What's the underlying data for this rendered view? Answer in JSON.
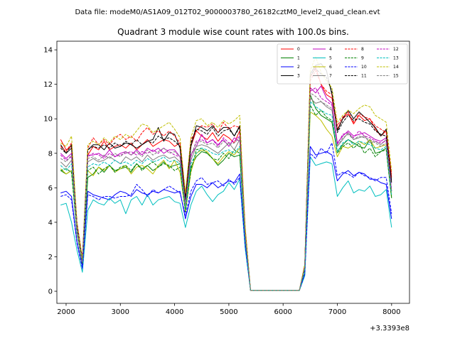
{
  "chart_data": {
    "type": "line",
    "suptitle": "Data file: modeM0/AS1A09_012T02_9000003780_26182cztM0_level2_quad_clean.evt",
    "title": "Quadrant 3 module wise count rates with 100.0s bins.",
    "xlabel": "",
    "ylabel": "",
    "x_offset_label": "+3.3393e8",
    "xlim": [
      1830,
      8330
    ],
    "ylim": [
      -0.7,
      14.5
    ],
    "xticks": [
      2000,
      3000,
      4000,
      5000,
      6000,
      7000,
      8000
    ],
    "yticks": [
      0,
      2,
      4,
      6,
      8,
      10,
      12,
      14
    ],
    "legend_position": "top-right",
    "x": [
      1900,
      2000,
      2100,
      2200,
      2300,
      2400,
      2500,
      2600,
      2700,
      2800,
      2900,
      3000,
      3100,
      3200,
      3300,
      3400,
      3500,
      3600,
      3700,
      3800,
      3900,
      4000,
      4100,
      4200,
      4300,
      4400,
      4500,
      4600,
      4700,
      4800,
      4900,
      5000,
      5100,
      5200,
      5300,
      5400,
      5500,
      5600,
      5700,
      5800,
      5900,
      6000,
      6100,
      6200,
      6300,
      6400,
      6500,
      6600,
      6700,
      6800,
      6900,
      7000,
      7100,
      7200,
      7300,
      7400,
      7500,
      7600,
      7700,
      7800,
      7900,
      8000
    ],
    "series": [
      {
        "name": "0",
        "color": "#ff0000",
        "dash": "solid",
        "values": [
          8.8,
          8.2,
          8.4,
          4.0,
          1.9,
          7.9,
          8.4,
          8.2,
          8.7,
          8.2,
          8.4,
          8.5,
          8.3,
          8.6,
          8.2,
          8.5,
          8.8,
          8.4,
          8.6,
          8.8,
          8.7,
          8.4,
          8.6,
          5.6,
          8.4,
          9.3,
          9.0,
          8.8,
          9.2,
          8.7,
          9.1,
          8.9,
          8.6,
          9.3,
          3.6,
          0.05,
          0.05,
          0.05,
          0.05,
          0.05,
          0.05,
          0.05,
          0.05,
          0.05,
          0.05,
          1.5,
          12.4,
          13.0,
          12.0,
          11.4,
          11.2,
          9.4,
          10.0,
          10.3,
          9.7,
          10.2,
          9.9,
          10.0,
          9.4,
          9.0,
          9.3,
          6.6
        ]
      },
      {
        "name": "1",
        "color": "#008000",
        "dash": "solid",
        "values": [
          7.0,
          6.8,
          7.0,
          3.5,
          1.6,
          6.6,
          6.8,
          7.2,
          6.9,
          7.3,
          7.0,
          7.1,
          7.2,
          6.9,
          7.4,
          7.1,
          7.3,
          7.0,
          7.2,
          7.5,
          7.2,
          7.3,
          7.4,
          4.8,
          7.2,
          7.8,
          8.1,
          8.0,
          7.7,
          7.3,
          7.6,
          8.0,
          7.8,
          7.9,
          3.1,
          0.05,
          0.05,
          0.05,
          0.05,
          0.05,
          0.05,
          0.05,
          0.05,
          0.05,
          0.05,
          1.3,
          11.4,
          10.6,
          10.2,
          10.0,
          9.8,
          8.1,
          8.5,
          8.8,
          8.6,
          8.4,
          8.3,
          8.8,
          8.0,
          8.1,
          8.3,
          5.4
        ]
      },
      {
        "name": "2",
        "color": "#0000ff",
        "dash": "solid",
        "values": [
          5.7,
          5.8,
          5.5,
          2.9,
          1.4,
          5.8,
          5.6,
          5.5,
          5.4,
          5.3,
          5.6,
          5.8,
          5.7,
          5.5,
          5.9,
          5.7,
          5.6,
          5.8,
          5.7,
          5.9,
          5.8,
          5.7,
          5.8,
          4.2,
          5.5,
          6.2,
          6.2,
          6.0,
          6.3,
          6.0,
          6.2,
          6.4,
          6.3,
          6.8,
          2.7,
          0.05,
          0.05,
          0.05,
          0.05,
          0.05,
          0.05,
          0.05,
          0.05,
          0.05,
          0.05,
          1.0,
          8.4,
          7.9,
          8.0,
          8.1,
          7.9,
          6.4,
          6.8,
          7.0,
          6.7,
          6.9,
          6.8,
          6.5,
          6.5,
          6.3,
          6.2,
          4.2
        ]
      },
      {
        "name": "3",
        "color": "#000000",
        "dash": "solid",
        "values": [
          8.5,
          8.0,
          8.3,
          3.9,
          1.8,
          8.2,
          8.5,
          8.5,
          8.2,
          8.6,
          8.3,
          8.4,
          8.6,
          8.5,
          8.3,
          8.5,
          8.7,
          8.8,
          9.5,
          8.7,
          9.2,
          9.1,
          8.3,
          5.3,
          8.4,
          9.6,
          9.5,
          9.3,
          9.6,
          9.2,
          9.5,
          9.5,
          9.0,
          9.6,
          3.6,
          0.05,
          0.05,
          0.05,
          0.05,
          0.05,
          0.05,
          0.05,
          0.05,
          0.05,
          0.05,
          1.5,
          12.6,
          13.1,
          13.2,
          12.8,
          11.4,
          9.3,
          10.0,
          10.5,
          10.0,
          10.4,
          10.1,
          9.8,
          9.5,
          9.0,
          9.4,
          6.3
        ]
      },
      {
        "name": "4",
        "color": "#bf00bf",
        "dash": "solid",
        "values": [
          8.0,
          7.7,
          8.0,
          3.7,
          1.8,
          7.9,
          7.9,
          8.0,
          7.8,
          8.2,
          7.8,
          8.0,
          8.1,
          7.9,
          8.2,
          7.9,
          8.3,
          8.1,
          8.3,
          8.0,
          8.2,
          8.2,
          7.8,
          5.0,
          7.9,
          8.4,
          9.1,
          8.6,
          8.8,
          8.5,
          8.8,
          8.4,
          8.9,
          8.7,
          3.3,
          0.05,
          0.05,
          0.05,
          0.05,
          0.05,
          0.05,
          0.05,
          0.05,
          0.05,
          0.05,
          1.4,
          11.8,
          11.5,
          11.9,
          11.2,
          10.9,
          8.6,
          9.0,
          9.3,
          9.0,
          9.1,
          9.2,
          9.0,
          8.8,
          8.7,
          8.9,
          5.8
        ]
      },
      {
        "name": "5",
        "color": "#00bfbf",
        "dash": "solid",
        "values": [
          5.0,
          5.1,
          4.0,
          2.4,
          1.1,
          4.7,
          5.3,
          5.1,
          5.0,
          5.4,
          5.1,
          5.3,
          4.5,
          5.3,
          5.5,
          5.0,
          5.6,
          5.0,
          5.3,
          5.4,
          5.5,
          5.2,
          5.1,
          3.7,
          5.0,
          5.8,
          6.1,
          5.6,
          5.2,
          5.6,
          5.8,
          6.3,
          5.9,
          6.5,
          2.5,
          0.05,
          0.05,
          0.05,
          0.05,
          0.05,
          0.05,
          0.05,
          0.05,
          0.05,
          0.05,
          0.9,
          7.8,
          7.3,
          7.4,
          7.5,
          7.4,
          5.5,
          6.0,
          6.4,
          5.7,
          5.9,
          5.8,
          6.1,
          5.5,
          5.6,
          5.9,
          3.7
        ]
      },
      {
        "name": "6",
        "color": "#bfbf00",
        "dash": "solid",
        "values": [
          7.1,
          6.8,
          7.0,
          3.4,
          1.6,
          7.0,
          6.7,
          7.2,
          7.0,
          7.3,
          6.9,
          7.1,
          7.3,
          6.8,
          7.2,
          7.3,
          7.1,
          6.8,
          7.3,
          7.6,
          7.1,
          7.6,
          6.9,
          4.6,
          6.9,
          8.0,
          8.2,
          8.1,
          7.7,
          7.4,
          7.8,
          8.1,
          7.9,
          8.3,
          3.2,
          0.05,
          0.05,
          0.05,
          0.05,
          0.05,
          0.05,
          0.05,
          0.05,
          0.05,
          0.05,
          1.3,
          10.4,
          10.2,
          9.9,
          9.4,
          9.0,
          7.8,
          8.4,
          8.3,
          8.5,
          8.7,
          8.5,
          8.8,
          8.3,
          8.4,
          8.5,
          5.5
        ]
      },
      {
        "name": "7",
        "color": "#808080",
        "dash": "solid",
        "values": [
          7.5,
          7.2,
          7.6,
          3.6,
          1.7,
          7.5,
          7.7,
          7.5,
          7.6,
          7.8,
          7.6,
          7.4,
          7.8,
          7.6,
          7.8,
          7.5,
          7.9,
          7.6,
          7.8,
          7.9,
          7.7,
          7.8,
          7.5,
          4.9,
          7.6,
          8.4,
          8.5,
          8.4,
          8.2,
          8.0,
          8.3,
          8.6,
          8.2,
          8.8,
          3.2,
          0.05,
          0.05,
          0.05,
          0.05,
          0.05,
          0.05,
          0.05,
          0.05,
          0.05,
          0.05,
          1.3,
          11.2,
          10.9,
          11.0,
          10.7,
          10.5,
          8.4,
          8.8,
          9.2,
          8.8,
          8.9,
          9.0,
          8.6,
          8.7,
          8.5,
          8.8,
          5.8
        ]
      },
      {
        "name": "8",
        "color": "#ff0000",
        "dash": "dashed",
        "values": [
          8.4,
          8.1,
          8.6,
          4.0,
          1.9,
          8.3,
          8.9,
          8.5,
          8.8,
          8.5,
          8.9,
          9.1,
          8.8,
          9.0,
          8.7,
          9.2,
          9.5,
          9.1,
          9.3,
          9.0,
          9.3,
          9.0,
          8.6,
          5.6,
          8.8,
          9.3,
          9.6,
          9.5,
          9.7,
          9.2,
          9.8,
          9.4,
          9.6,
          9.5,
          3.7,
          0.05,
          0.05,
          0.05,
          0.05,
          0.05,
          0.05,
          0.05,
          0.05,
          0.05,
          0.05,
          1.5,
          12.2,
          12.8,
          12.0,
          11.6,
          11.4,
          9.6,
          10.1,
          10.4,
          9.8,
          10.3,
          10.1,
          10.0,
          9.6,
          9.4,
          9.2,
          6.8
        ]
      },
      {
        "name": "9",
        "color": "#008000",
        "dash": "dashed",
        "values": [
          7.0,
          7.1,
          6.9,
          3.4,
          1.6,
          7.0,
          7.2,
          6.8,
          7.1,
          7.3,
          6.9,
          7.2,
          7.3,
          7.0,
          7.4,
          7.0,
          7.3,
          7.5,
          7.2,
          7.4,
          7.3,
          7.0,
          7.2,
          4.6,
          7.0,
          8.2,
          8.3,
          8.0,
          7.7,
          7.6,
          8.0,
          7.7,
          8.2,
          8.0,
          3.1,
          0.05,
          0.05,
          0.05,
          0.05,
          0.05,
          0.05,
          0.05,
          0.05,
          0.05,
          0.05,
          1.2,
          10.8,
          10.2,
          10.5,
          10.1,
          9.9,
          8.0,
          8.4,
          8.6,
          8.3,
          8.6,
          8.0,
          8.3,
          7.8,
          8.1,
          8.2,
          5.4
        ]
      },
      {
        "name": "10",
        "color": "#0000ff",
        "dash": "dashed",
        "values": [
          5.5,
          5.6,
          5.3,
          2.8,
          1.3,
          5.6,
          5.5,
          5.3,
          5.5,
          5.5,
          5.4,
          5.5,
          5.5,
          5.6,
          6.2,
          5.9,
          5.5,
          5.9,
          5.7,
          5.9,
          6.1,
          5.9,
          5.7,
          4.4,
          5.8,
          6.4,
          6.6,
          6.2,
          6.3,
          6.4,
          6.1,
          6.5,
          6.2,
          6.6,
          2.7,
          0.05,
          0.05,
          0.05,
          0.05,
          0.05,
          0.05,
          0.05,
          0.05,
          0.05,
          0.05,
          1.0,
          8.0,
          7.7,
          8.3,
          8.0,
          8.6,
          6.7,
          6.9,
          6.8,
          6.6,
          6.9,
          6.7,
          6.6,
          6.4,
          6.6,
          6.6,
          4.5
        ]
      },
      {
        "name": "11",
        "color": "#000000",
        "dash": "dashed",
        "values": [
          8.3,
          8.0,
          8.5,
          3.9,
          1.8,
          8.2,
          8.4,
          8.3,
          8.5,
          8.3,
          8.6,
          8.4,
          8.7,
          8.5,
          8.8,
          8.5,
          8.7,
          8.6,
          9.0,
          8.8,
          8.9,
          8.7,
          8.4,
          5.4,
          8.6,
          9.4,
          9.3,
          9.1,
          9.5,
          9.0,
          9.3,
          9.4,
          9.0,
          9.5,
          3.5,
          0.05,
          0.05,
          0.05,
          0.05,
          0.05,
          0.05,
          0.05,
          0.05,
          0.05,
          0.05,
          1.5,
          12.5,
          12.9,
          12.6,
          12.4,
          11.6,
          9.2,
          9.8,
          10.2,
          9.9,
          10.0,
          9.8,
          9.7,
          9.3,
          9.1,
          9.0,
          6.4
        ]
      },
      {
        "name": "12",
        "color": "#bf00bf",
        "dash": "dashed",
        "values": [
          7.9,
          7.6,
          7.8,
          3.7,
          1.7,
          7.8,
          8.0,
          7.9,
          7.7,
          8.0,
          7.8,
          7.9,
          8.0,
          8.1,
          7.9,
          8.1,
          8.0,
          8.2,
          8.0,
          8.3,
          8.1,
          7.9,
          7.8,
          5.1,
          7.8,
          8.7,
          8.8,
          8.6,
          8.8,
          8.4,
          8.9,
          8.6,
          8.7,
          9.0,
          3.3,
          0.05,
          0.05,
          0.05,
          0.05,
          0.05,
          0.05,
          0.05,
          0.05,
          0.05,
          0.05,
          1.4,
          11.6,
          11.8,
          11.2,
          11.0,
          10.8,
          8.5,
          9.1,
          9.2,
          8.9,
          9.3,
          9.0,
          8.9,
          8.7,
          8.6,
          8.7,
          5.9
        ]
      },
      {
        "name": "13",
        "color": "#00bfbf",
        "dash": "dashed",
        "values": [
          7.3,
          7.0,
          7.4,
          3.5,
          1.7,
          7.2,
          7.4,
          7.3,
          7.5,
          7.3,
          7.6,
          7.4,
          7.5,
          7.3,
          7.6,
          7.4,
          7.7,
          7.5,
          7.6,
          7.8,
          7.5,
          7.6,
          7.4,
          4.8,
          7.4,
          8.0,
          8.3,
          8.2,
          8.0,
          7.9,
          8.1,
          8.2,
          8.0,
          8.4,
          3.2,
          0.05,
          0.05,
          0.05,
          0.05,
          0.05,
          0.05,
          0.05,
          0.05,
          0.05,
          0.05,
          1.3,
          11.0,
          10.7,
          10.5,
          10.3,
          10.2,
          8.1,
          8.6,
          8.8,
          8.5,
          8.7,
          8.6,
          8.5,
          8.3,
          8.2,
          8.4,
          5.6
        ]
      },
      {
        "name": "14",
        "color": "#bfbf00",
        "dash": "dashed",
        "values": [
          8.6,
          8.4,
          9.0,
          4.0,
          1.9,
          8.5,
          8.7,
          8.5,
          8.9,
          8.6,
          9.0,
          8.8,
          9.1,
          8.9,
          9.3,
          9.7,
          9.6,
          9.2,
          9.4,
          9.6,
          9.8,
          9.4,
          8.9,
          5.7,
          8.9,
          9.9,
          10.0,
          9.6,
          9.8,
          9.5,
          9.9,
          9.7,
          9.9,
          10.2,
          3.8,
          0.05,
          0.05,
          0.05,
          0.05,
          0.05,
          0.05,
          0.05,
          0.05,
          0.05,
          0.05,
          1.6,
          12.8,
          13.6,
          12.7,
          12.2,
          11.8,
          9.8,
          10.2,
          10.5,
          10.3,
          10.6,
          10.8,
          10.7,
          10.2,
          10.0,
          9.8,
          7.0
        ]
      },
      {
        "name": "15",
        "color": "#808080",
        "dash": "dashed",
        "values": [
          7.7,
          7.5,
          7.9,
          3.6,
          1.7,
          7.7,
          7.8,
          7.6,
          7.9,
          7.7,
          8.0,
          7.8,
          8.1,
          7.9,
          8.1,
          7.8,
          8.2,
          7.9,
          8.1,
          8.3,
          8.0,
          8.1,
          7.8,
          5.0,
          7.9,
          8.6,
          8.7,
          8.5,
          8.6,
          8.3,
          8.7,
          8.5,
          8.6,
          8.9,
          3.3,
          0.05,
          0.05,
          0.05,
          0.05,
          0.05,
          0.05,
          0.05,
          0.05,
          0.05,
          0.05,
          1.4,
          11.5,
          11.3,
          11.0,
          10.8,
          10.6,
          8.4,
          8.9,
          9.1,
          8.8,
          9.0,
          8.9,
          8.8,
          8.6,
          8.4,
          8.6,
          5.8
        ]
      }
    ]
  }
}
